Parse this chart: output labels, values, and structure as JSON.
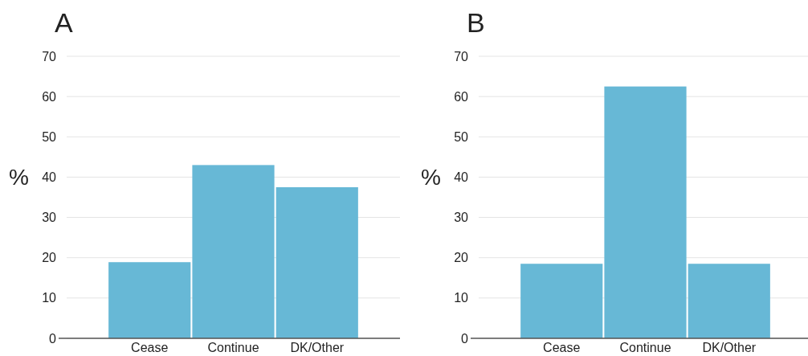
{
  "chart_data": [
    {
      "type": "bar",
      "title": "A",
      "ylabel": "%",
      "categories": [
        "Cease",
        "Continue",
        "DK/Other"
      ],
      "values": [
        18.9,
        43.0,
        37.5
      ],
      "color": "#67b8d6",
      "ylim": [
        0,
        70
      ],
      "yticks": [
        0,
        10,
        20,
        30,
        40,
        50,
        60,
        70
      ],
      "grid": "y"
    },
    {
      "type": "bar",
      "title": "B",
      "ylabel": "%",
      "categories": [
        "Cease",
        "Continue",
        "DK/Other"
      ],
      "values": [
        18.5,
        62.5,
        18.5
      ],
      "color": "#67b8d6",
      "ylim": [
        0,
        70
      ],
      "yticks": [
        0,
        10,
        20,
        30,
        40,
        50,
        60,
        70
      ],
      "grid": "y"
    }
  ]
}
